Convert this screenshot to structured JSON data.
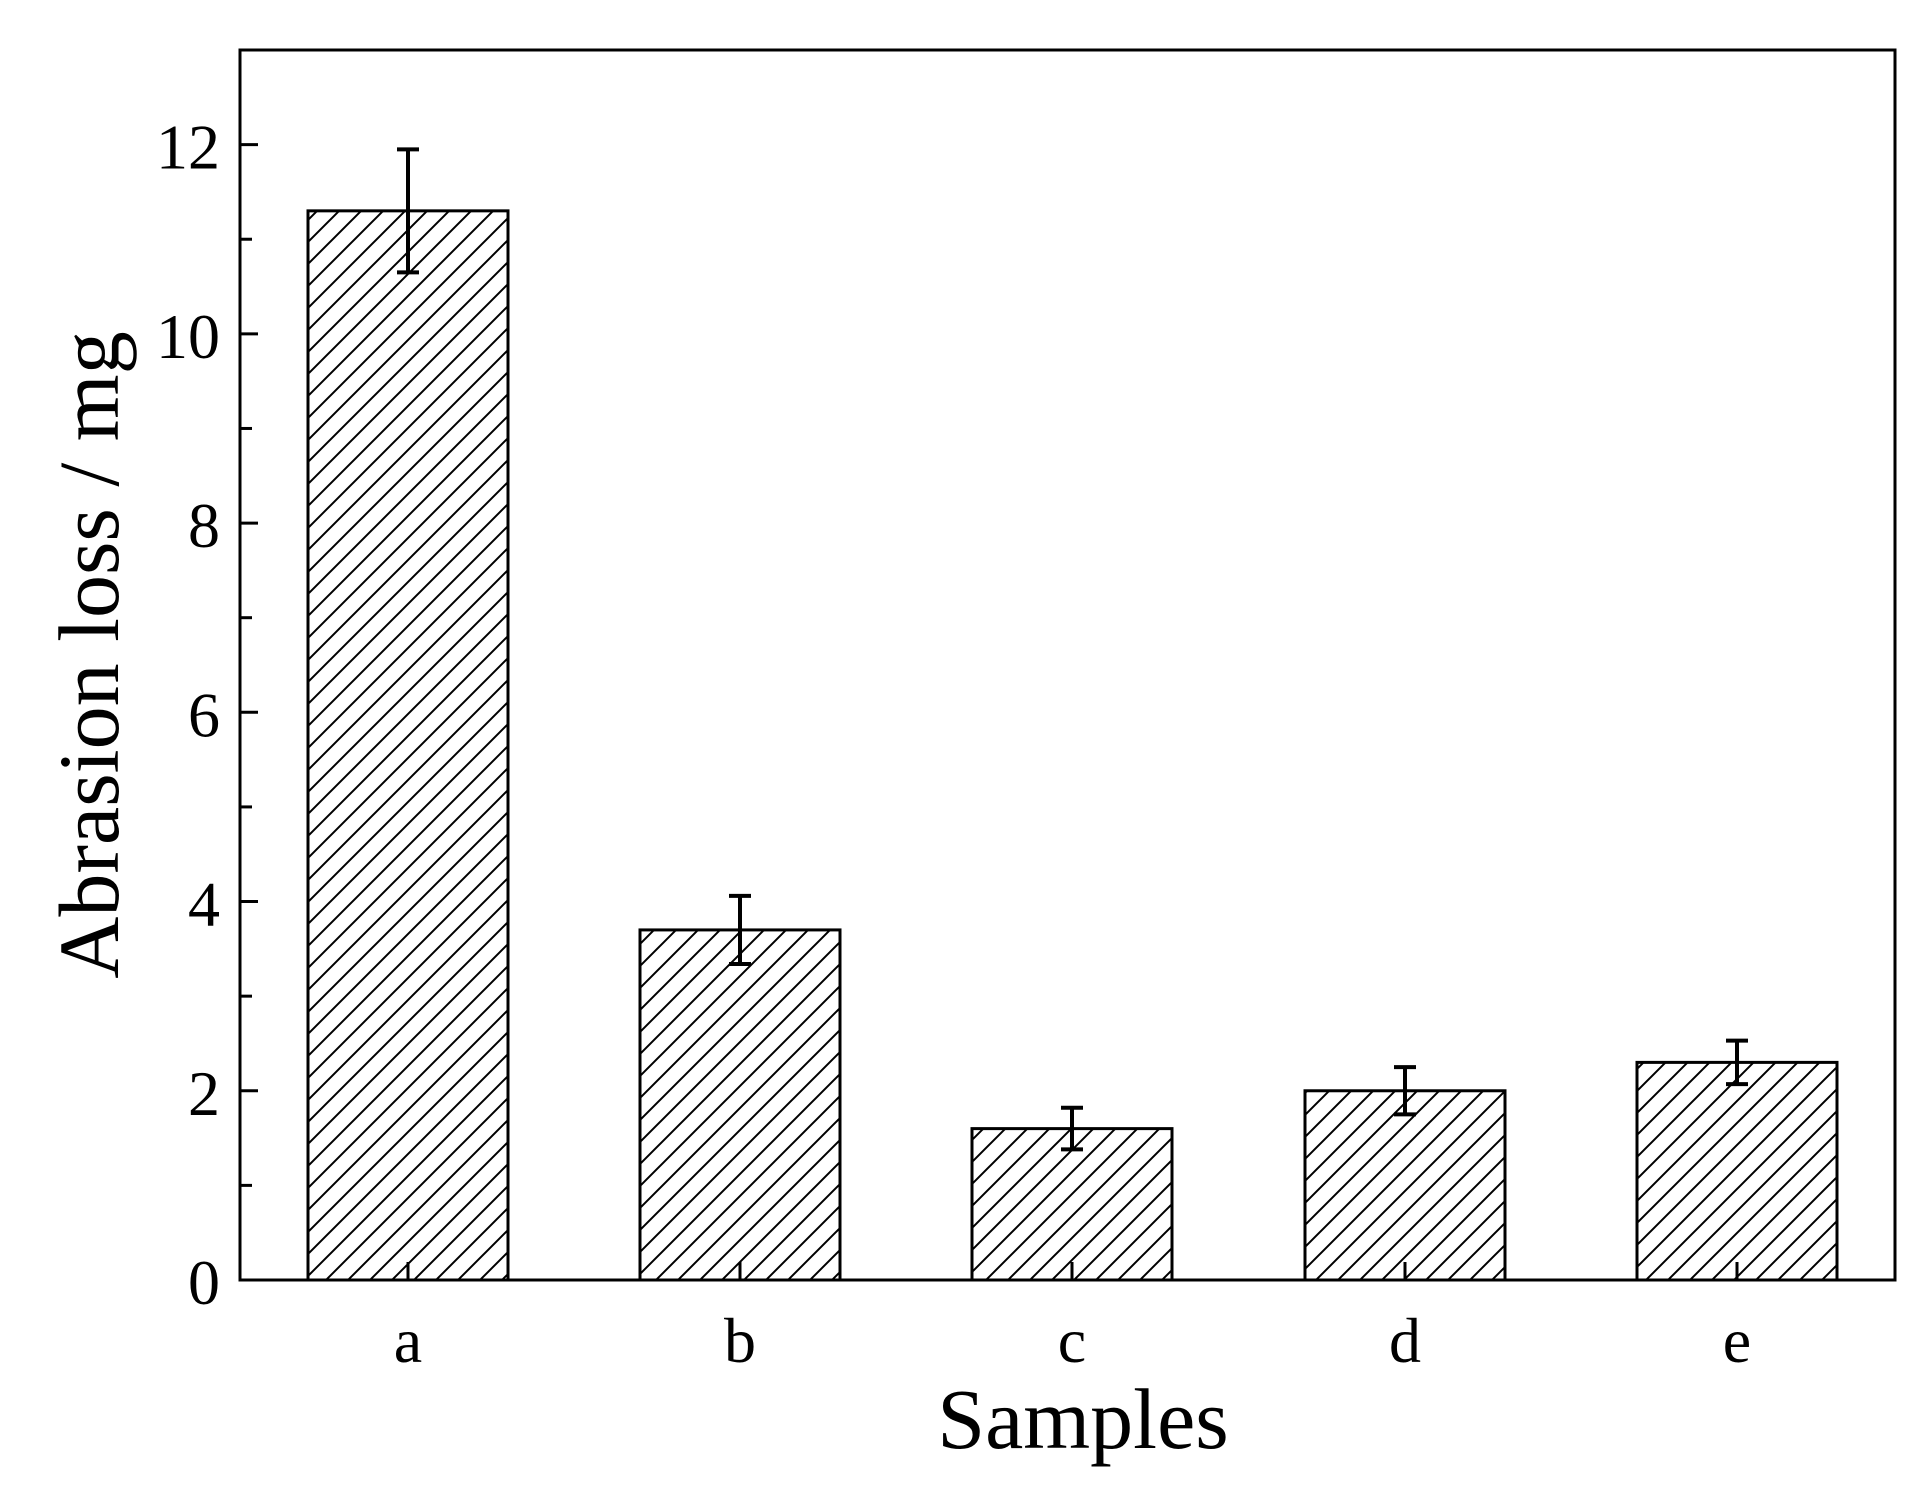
{
  "chart_data": {
    "type": "bar",
    "title": "",
    "xlabel": "Samples",
    "ylabel": "Abrasion loss / mg",
    "categories": [
      "a",
      "b",
      "c",
      "d",
      "e"
    ],
    "values": [
      11.3,
      3.7,
      1.6,
      2.0,
      2.3
    ],
    "errors": [
      0.65,
      0.36,
      0.22,
      0.25,
      0.23
    ],
    "ylim": [
      0,
      13
    ],
    "yticks": [
      0,
      2,
      4,
      6,
      8,
      10,
      12
    ],
    "ytick_labels": [
      "0",
      "2",
      "4",
      "6",
      "8",
      "10",
      "12"
    ],
    "grid": false,
    "legend": "none",
    "bar_fill": "diagonal-hatch",
    "colors": {
      "bar_edge": "#000000",
      "hatch": "#000000",
      "background": "#ffffff"
    }
  }
}
